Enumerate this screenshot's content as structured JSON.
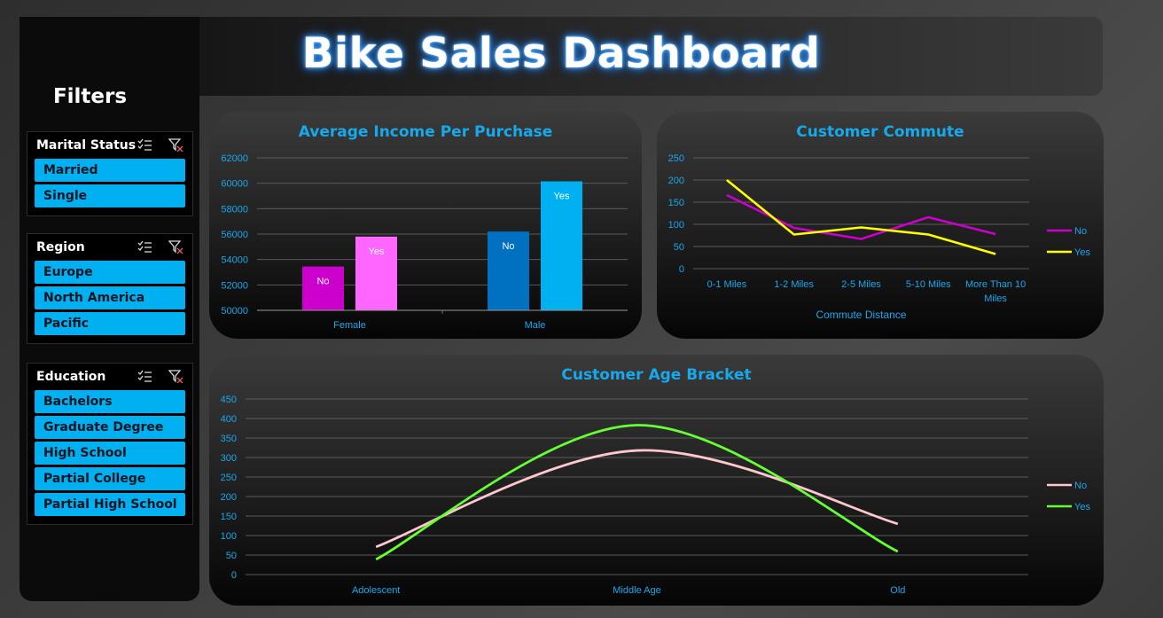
{
  "header": {
    "title": "Bike Sales Dashboard"
  },
  "filters": {
    "title": "Filters",
    "slicers": [
      {
        "label": "Marital Status",
        "items": [
          "Married",
          "Single"
        ]
      },
      {
        "label": "Region",
        "items": [
          "Europe",
          "North America",
          "Pacific"
        ]
      },
      {
        "label": "Education",
        "items": [
          "Bachelors",
          "Graduate Degree",
          "High School",
          "Partial College",
          "Partial High School"
        ]
      }
    ]
  },
  "icons": {
    "multi_select": "multi-select-icon",
    "clear_filter": "clear-filter-icon"
  },
  "colors": {
    "accent": "#16a9ec",
    "slicer_item": "#00b0f0"
  },
  "chart_data": [
    {
      "type": "bar",
      "title": "Average Income Per Purchase",
      "categories": [
        "Female",
        "Male"
      ],
      "series": [
        {
          "name": "No",
          "values": [
            53450,
            56200
          ],
          "colors": [
            "#cc00cc",
            "#0070c0"
          ]
        },
        {
          "name": "Yes",
          "values": [
            55800,
            60150
          ],
          "colors": [
            "#ff66ff",
            "#00b0f0"
          ]
        }
      ],
      "yticks": [
        "50000",
        "52000",
        "54000",
        "56000",
        "58000",
        "60000",
        "62000"
      ],
      "ylim": [
        50000,
        62000
      ],
      "data_labels": true,
      "grid": true
    },
    {
      "type": "line",
      "title": "Customer Commute",
      "xlabel": "Commute Distance",
      "categories": [
        "0-1 Miles",
        "1-2 Miles",
        "2-5 Miles",
        "5-10 Miles",
        "More Than 10 Miles"
      ],
      "series": [
        {
          "name": "No",
          "values": [
            166,
            92,
            67,
            116,
            78
          ],
          "color": "#cc00cc"
        },
        {
          "name": "Yes",
          "values": [
            200,
            77,
            93,
            77,
            33
          ],
          "color": "#ffff00"
        }
      ],
      "yticks": [
        "0",
        "50",
        "100",
        "150",
        "200",
        "250"
      ],
      "ylim": [
        0,
        250
      ],
      "legend": "right",
      "grid": true
    },
    {
      "type": "line",
      "title": "Customer Age Bracket",
      "categories": [
        "Adolescent",
        "Middle Age",
        "Old"
      ],
      "series": [
        {
          "name": "No",
          "values": [
            71,
            318,
            130
          ],
          "color": "#ffc7ce"
        },
        {
          "name": "Yes",
          "values": [
            39,
            383,
            59
          ],
          "color": "#66ff33"
        }
      ],
      "yticks": [
        "0",
        "50",
        "100",
        "150",
        "200",
        "250",
        "300",
        "350",
        "400",
        "450"
      ],
      "ylim": [
        0,
        450
      ],
      "legend": "right",
      "grid": true,
      "smooth": true
    }
  ]
}
